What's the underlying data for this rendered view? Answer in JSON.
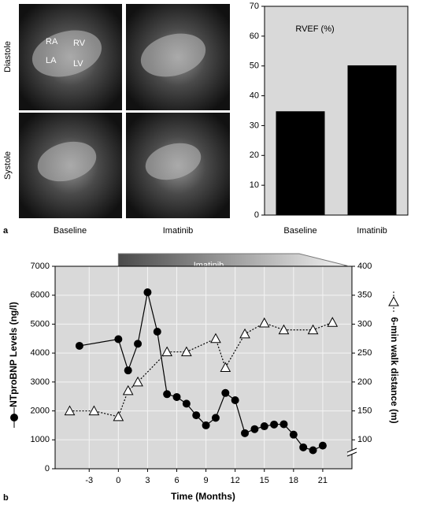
{
  "panel_a": {
    "label": "a",
    "rows": [
      "Diastole",
      "Systole"
    ],
    "columns": [
      "Baseline",
      "Imatinib"
    ],
    "chambers": [
      "RA",
      "RV",
      "LA",
      "LV"
    ]
  },
  "panel_b": {
    "label": "b"
  },
  "chart_data": [
    {
      "type": "bar",
      "annotation": "RVEF (%)",
      "categories": [
        "Baseline",
        "Imatinib"
      ],
      "values": [
        34.8,
        50.2
      ],
      "color": "#000000",
      "background": "#d9d9d9",
      "ylim": [
        0,
        70
      ],
      "yticks": [
        0,
        10,
        20,
        30,
        40,
        50,
        60,
        70
      ]
    },
    {
      "type": "line",
      "xlabel": "Time (Months)",
      "annotation": "Imatinib",
      "background": "#d9d9d9",
      "grid": true,
      "xlim": [
        -6.5,
        24
      ],
      "xticks": [
        -3,
        0,
        3,
        6,
        9,
        12,
        15,
        18,
        21
      ],
      "ylim": [
        0,
        7000
      ],
      "yticks": [
        0,
        1000,
        2000,
        3000,
        4000,
        5000,
        6000,
        7000
      ],
      "y2lim": [
        50,
        400
      ],
      "y2ticks": [
        100,
        150,
        200,
        250,
        300,
        350,
        400
      ],
      "series": [
        {
          "name": "NTproBNP Levels (ng/l)",
          "color": "#000000",
          "marker": "circle",
          "line": "solid",
          "x": [
            -4,
            0,
            1,
            2,
            3,
            4,
            5,
            6,
            7,
            8,
            9,
            10,
            11,
            12,
            13,
            14,
            15,
            16,
            17,
            18,
            19,
            20,
            21
          ],
          "values": [
            4250,
            4480,
            3400,
            4320,
            6100,
            4740,
            2580,
            2480,
            2250,
            1850,
            1500,
            1760,
            2620,
            2370,
            1230,
            1370,
            1470,
            1530,
            1540,
            1180,
            740,
            640,
            800
          ]
        },
        {
          "name": "6-min walk distance (m)",
          "color": "#000000",
          "marker": "triangle",
          "line": "dotted",
          "axis": "y2",
          "x": [
            -5,
            -2.5,
            0,
            1,
            2,
            5,
            7,
            10,
            11,
            13,
            15,
            17,
            20,
            22
          ],
          "values": [
            150,
            150,
            140,
            185,
            200,
            252,
            252,
            275,
            225,
            283,
            302,
            290,
            290,
            303
          ]
        }
      ]
    }
  ]
}
